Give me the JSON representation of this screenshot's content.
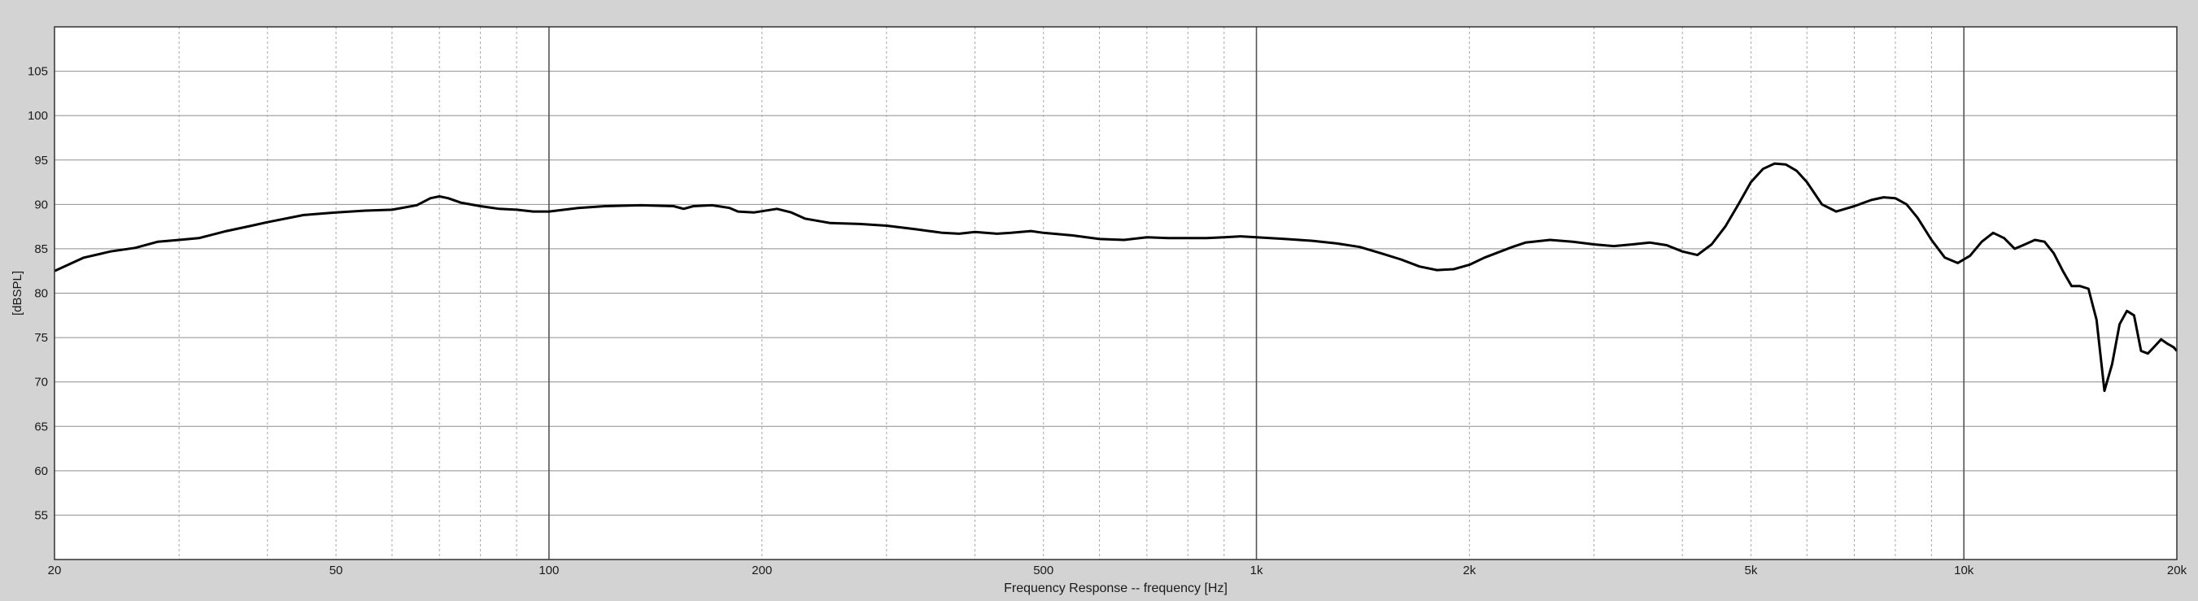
{
  "chart_data": {
    "type": "line",
    "xlabel": "Frequency Response -- frequency [Hz]",
    "ylabel": "[dBSPL]",
    "x_scale": "log",
    "xlim": [
      20,
      20000
    ],
    "ylim": [
      50,
      110
    ],
    "x_ticks": [
      {
        "value": 20,
        "label": "20"
      },
      {
        "value": 50,
        "label": "50"
      },
      {
        "value": 100,
        "label": "100"
      },
      {
        "value": 200,
        "label": "200"
      },
      {
        "value": 500,
        "label": "500"
      },
      {
        "value": 1000,
        "label": "1k"
      },
      {
        "value": 2000,
        "label": "2k"
      },
      {
        "value": 5000,
        "label": "5k"
      },
      {
        "value": 10000,
        "label": "10k"
      },
      {
        "value": 20000,
        "label": "20k"
      }
    ],
    "y_ticks": [
      55,
      60,
      65,
      70,
      75,
      80,
      85,
      90,
      95,
      100,
      105
    ],
    "grid": true,
    "colors": {
      "background": "#d3d3d3",
      "plot_bg": "#ffffff",
      "line": "#000000",
      "grid": "#9a9a9a",
      "clipped_line": "#666666"
    },
    "series": [
      {
        "values": [
          [
            20,
            82.5
          ],
          [
            22,
            84
          ],
          [
            24,
            84.7
          ],
          [
            26,
            85.1
          ],
          [
            28,
            85.8
          ],
          [
            30,
            86
          ],
          [
            32,
            86.2
          ],
          [
            35,
            87
          ],
          [
            38,
            87.6
          ],
          [
            40,
            88
          ],
          [
            45,
            88.8
          ],
          [
            50,
            89.1
          ],
          [
            55,
            89.3
          ],
          [
            60,
            89.4
          ],
          [
            65,
            89.9
          ],
          [
            68,
            90.7
          ],
          [
            70,
            90.9
          ],
          [
            72,
            90.7
          ],
          [
            75,
            90.2
          ],
          [
            80,
            89.8
          ],
          [
            85,
            89.5
          ],
          [
            90,
            89.4
          ],
          [
            95,
            89.2
          ],
          [
            100,
            89.2
          ],
          [
            110,
            89.6
          ],
          [
            120,
            89.8
          ],
          [
            135,
            89.9
          ],
          [
            150,
            89.8
          ],
          [
            155,
            89.5
          ],
          [
            160,
            89.8
          ],
          [
            170,
            89.9
          ],
          [
            180,
            89.6
          ],
          [
            185,
            89.2
          ],
          [
            195,
            89.1
          ],
          [
            210,
            89.5
          ],
          [
            220,
            89.1
          ],
          [
            230,
            88.4
          ],
          [
            250,
            87.9
          ],
          [
            275,
            87.8
          ],
          [
            300,
            87.6
          ],
          [
            330,
            87.2
          ],
          [
            360,
            86.8
          ],
          [
            380,
            86.7
          ],
          [
            400,
            86.9
          ],
          [
            430,
            86.7
          ],
          [
            450,
            86.8
          ],
          [
            480,
            87
          ],
          [
            500,
            86.8
          ],
          [
            550,
            86.5
          ],
          [
            600,
            86.1
          ],
          [
            650,
            86
          ],
          [
            700,
            86.3
          ],
          [
            750,
            86.2
          ],
          [
            800,
            86.2
          ],
          [
            850,
            86.2
          ],
          [
            900,
            86.3
          ],
          [
            950,
            86.4
          ],
          [
            1000,
            86.3
          ],
          [
            1100,
            86.1
          ],
          [
            1200,
            85.9
          ],
          [
            1300,
            85.6
          ],
          [
            1400,
            85.2
          ],
          [
            1500,
            84.5
          ],
          [
            1600,
            83.8
          ],
          [
            1700,
            83
          ],
          [
            1800,
            82.6
          ],
          [
            1900,
            82.7
          ],
          [
            2000,
            83.2
          ],
          [
            2100,
            84
          ],
          [
            2300,
            85.2
          ],
          [
            2400,
            85.7
          ],
          [
            2600,
            86
          ],
          [
            2800,
            85.8
          ],
          [
            3000,
            85.5
          ],
          [
            3200,
            85.3
          ],
          [
            3400,
            85.5
          ],
          [
            3600,
            85.7
          ],
          [
            3800,
            85.4
          ],
          [
            4000,
            84.7
          ],
          [
            4200,
            84.3
          ],
          [
            4400,
            85.5
          ],
          [
            4600,
            87.5
          ],
          [
            4800,
            90
          ],
          [
            5000,
            92.5
          ],
          [
            5200,
            94
          ],
          [
            5400,
            94.6
          ],
          [
            5600,
            94.5
          ],
          [
            5800,
            93.8
          ],
          [
            6000,
            92.5
          ],
          [
            6300,
            90
          ],
          [
            6600,
            89.2
          ],
          [
            7000,
            89.8
          ],
          [
            7400,
            90.5
          ],
          [
            7700,
            90.8
          ],
          [
            8000,
            90.7
          ],
          [
            8300,
            90
          ],
          [
            8600,
            88.5
          ],
          [
            9000,
            86
          ],
          [
            9400,
            84
          ],
          [
            9800,
            83.4
          ],
          [
            10200,
            84.2
          ],
          [
            10600,
            85.8
          ],
          [
            11000,
            86.8
          ],
          [
            11400,
            86.2
          ],
          [
            11800,
            85
          ],
          [
            12200,
            85.5
          ],
          [
            12600,
            86
          ],
          [
            13000,
            85.8
          ],
          [
            13400,
            84.5
          ],
          [
            13800,
            82.5
          ],
          [
            14200,
            80.8
          ],
          [
            14600,
            80.8
          ],
          [
            15000,
            80.5
          ],
          [
            15400,
            77
          ],
          [
            15800,
            69
          ],
          [
            16200,
            72
          ],
          [
            16600,
            76.5
          ],
          [
            17000,
            78
          ],
          [
            17400,
            77.5
          ],
          [
            17800,
            73.5
          ],
          [
            18200,
            73.2
          ],
          [
            18600,
            74
          ],
          [
            19000,
            74.8
          ],
          [
            19400,
            74.3
          ],
          [
            19800,
            73.9
          ],
          [
            20000,
            73.5
          ]
        ]
      }
    ]
  }
}
